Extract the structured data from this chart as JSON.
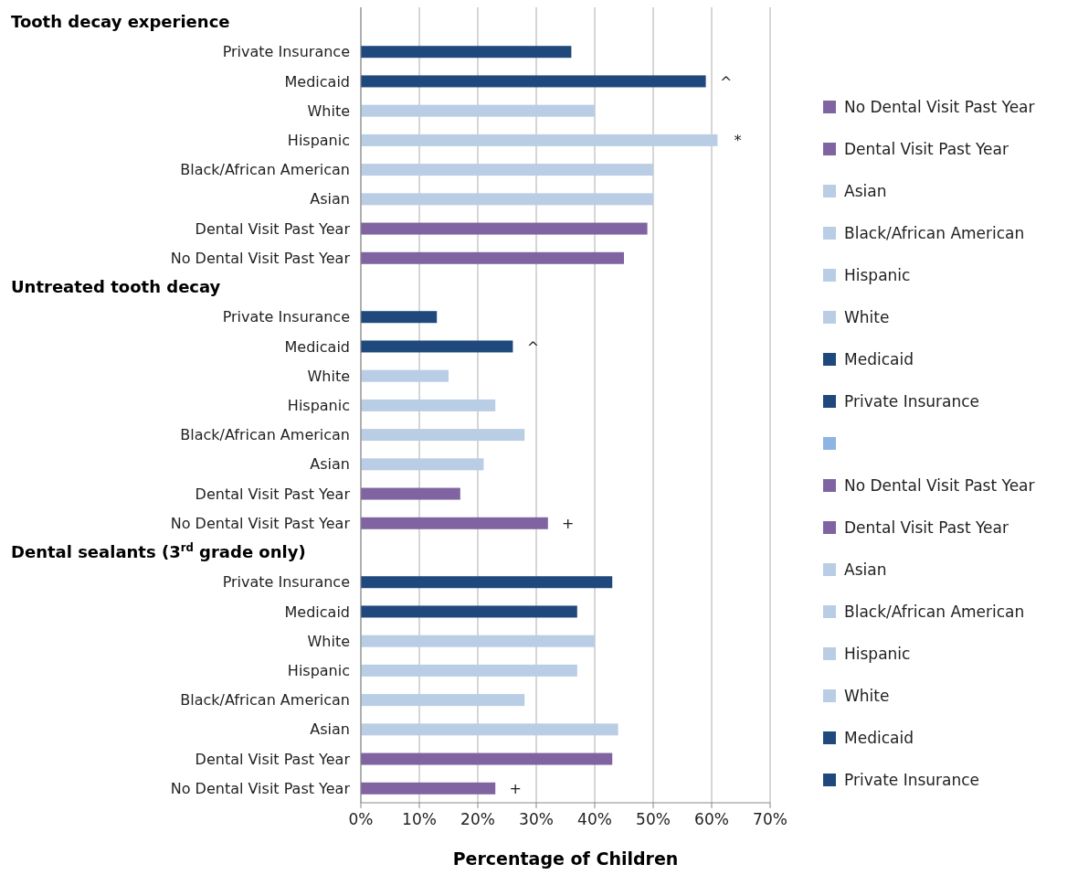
{
  "chart_data": {
    "type": "bar",
    "orientation": "horizontal",
    "stacked": true,
    "xlabel": "Percentage of Children",
    "annotations": [
      "Tooth decay experience",
      "Untreated tooth decay",
      "Dental sealants (3$^{rd}$ grade only)"
    ],
    "categories": [
      null,
      "Private Insurance",
      "Medicaid",
      "White",
      "Hispanic",
      "Black/African American",
      "Asian",
      "Dental Visit Past Year",
      "No Dental Visit Past Year",
      null,
      "Private Insurance",
      "Medicaid",
      "White",
      "Hispanic",
      "Black/African American",
      "Asian",
      "Dental Visit Past Year",
      "No Dental Visit Past Year",
      null,
      "Private Insurance",
      "Medicaid",
      "White",
      "Hispanic",
      "Black/African American",
      "Asian",
      "Dental Visit Past Year",
      "No Dental Visit Past Year"
    ],
    "xlim": [
      0,
      70
    ],
    "xticks": [
      {
        "value": 0,
        "label": "0%"
      },
      {
        "value": 10,
        "label": "10%"
      },
      {
        "value": 20,
        "label": "20%"
      },
      {
        "value": 30,
        "label": "30%"
      },
      {
        "value": 40,
        "label": "40%"
      },
      {
        "value": 50,
        "label": "50%"
      },
      {
        "value": 60,
        "label": "60%"
      },
      {
        "value": 70,
        "label": "70%"
      }
    ],
    "grid": "x",
    "legend": "right",
    "series": [
      {
        "name": "No Dental Visit Past Year",
        "color": "#8064a2",
        "values": [
          null,
          null,
          null,
          null,
          null,
          null,
          null,
          null,
          null,
          null,
          null,
          null,
          null,
          null,
          null,
          null,
          null,
          null,
          null,
          null,
          null,
          null,
          null,
          null,
          null,
          null,
          23
        ],
        "value_labels": [
          null,
          null,
          null,
          null,
          null,
          null,
          null,
          null,
          null,
          null,
          null,
          null,
          null,
          null,
          null,
          null,
          null,
          null,
          null,
          null,
          null,
          null,
          null,
          null,
          null,
          null,
          "+"
        ]
      },
      {
        "name": "Dental Visit Past Year",
        "color": "#8064a2",
        "values": [
          null,
          null,
          null,
          null,
          null,
          null,
          null,
          null,
          null,
          null,
          null,
          null,
          null,
          null,
          null,
          null,
          null,
          null,
          null,
          null,
          null,
          null,
          null,
          null,
          null,
          43,
          null
        ]
      },
      {
        "name": "Asian",
        "color": "#b9cde5",
        "values": [
          null,
          null,
          null,
          null,
          null,
          null,
          null,
          null,
          null,
          null,
          null,
          null,
          null,
          null,
          null,
          null,
          null,
          null,
          null,
          null,
          null,
          null,
          null,
          null,
          44,
          null,
          null
        ]
      },
      {
        "name": "Black/African American",
        "color": "#b9cde5",
        "values": [
          null,
          null,
          null,
          null,
          null,
          null,
          null,
          null,
          null,
          null,
          null,
          null,
          null,
          null,
          null,
          null,
          null,
          null,
          null,
          null,
          null,
          null,
          null,
          28,
          null,
          null,
          null
        ]
      },
      {
        "name": "Hispanic",
        "color": "#b9cde5",
        "values": [
          null,
          null,
          null,
          null,
          null,
          null,
          null,
          null,
          null,
          null,
          null,
          null,
          null,
          null,
          null,
          null,
          null,
          null,
          null,
          null,
          null,
          null,
          37,
          null,
          null,
          null,
          null
        ]
      },
      {
        "name": "White",
        "color": "#b9cde5",
        "values": [
          null,
          null,
          null,
          null,
          null,
          null,
          null,
          null,
          null,
          null,
          null,
          null,
          null,
          null,
          null,
          null,
          null,
          null,
          null,
          null,
          null,
          40,
          null,
          null,
          null,
          null,
          null
        ]
      },
      {
        "name": "Medicaid",
        "color": "#1f497d",
        "values": [
          null,
          null,
          null,
          null,
          null,
          null,
          null,
          null,
          null,
          null,
          null,
          null,
          null,
          null,
          null,
          null,
          null,
          null,
          null,
          null,
          37,
          null,
          null,
          null,
          null,
          null,
          null
        ]
      },
      {
        "name": "Private Insurance",
        "color": "#1f497d",
        "values": [
          null,
          null,
          null,
          null,
          null,
          null,
          null,
          null,
          null,
          null,
          null,
          null,
          null,
          null,
          null,
          null,
          null,
          null,
          null,
          43,
          null,
          null,
          null,
          null,
          null,
          null,
          null
        ]
      },
      {
        "color": "#8db4e2",
        "values": [
          null,
          null,
          null,
          null,
          null,
          null,
          null,
          null,
          null,
          null,
          null,
          null,
          null,
          null,
          null,
          null,
          null,
          null,
          null,
          null,
          null,
          null,
          null,
          null,
          null,
          null,
          null
        ]
      },
      {
        "name": "No Dental Visit Past Year",
        "color": "#8064a2",
        "values": [
          null,
          null,
          null,
          null,
          null,
          null,
          null,
          null,
          null,
          null,
          null,
          null,
          null,
          null,
          null,
          null,
          null,
          32,
          null,
          null,
          null,
          null,
          null,
          null,
          null,
          null,
          null
        ],
        "value_labels": [
          null,
          null,
          null,
          null,
          null,
          null,
          null,
          null,
          null,
          null,
          null,
          null,
          null,
          null,
          null,
          null,
          null,
          "+",
          null,
          null,
          null,
          null,
          null,
          null,
          null,
          null,
          null
        ]
      },
      {
        "name": "Dental Visit Past Year",
        "color": "#8064a2",
        "values": [
          null,
          null,
          null,
          null,
          null,
          null,
          null,
          null,
          null,
          null,
          null,
          null,
          null,
          null,
          null,
          null,
          17,
          null,
          null,
          null,
          null,
          null,
          null,
          null,
          null,
          null,
          null
        ]
      },
      {
        "name": "Asian",
        "color": "#b9cde5",
        "values": [
          null,
          null,
          null,
          null,
          null,
          null,
          null,
          null,
          null,
          null,
          null,
          null,
          null,
          null,
          null,
          21,
          null,
          null,
          null,
          null,
          null,
          null,
          null,
          null,
          null,
          null,
          null
        ]
      },
      {
        "name": "Black/African American",
        "color": "#b9cde5",
        "values": [
          null,
          null,
          null,
          null,
          null,
          null,
          null,
          null,
          null,
          null,
          null,
          null,
          null,
          null,
          28,
          null,
          null,
          null,
          null,
          null,
          null,
          null,
          null,
          null,
          null,
          null,
          null
        ]
      },
      {
        "name": "Hispanic",
        "color": "#b9cde5",
        "values": [
          null,
          null,
          null,
          null,
          null,
          null,
          null,
          null,
          null,
          null,
          null,
          null,
          null,
          23,
          null,
          null,
          null,
          null,
          null,
          null,
          null,
          null,
          null,
          null,
          null,
          null,
          null
        ]
      },
      {
        "name": "White",
        "color": "#b9cde5",
        "values": [
          null,
          null,
          null,
          null,
          null,
          null,
          null,
          null,
          null,
          null,
          null,
          null,
          15,
          null,
          null,
          null,
          null,
          null,
          null,
          null,
          null,
          null,
          null,
          null,
          null,
          null,
          null
        ]
      },
      {
        "name": "Medicaid",
        "color": "#1f497d",
        "values": [
          null,
          null,
          null,
          null,
          null,
          null,
          null,
          null,
          null,
          null,
          null,
          26,
          null,
          null,
          null,
          null,
          null,
          null,
          null,
          null,
          null,
          null,
          null,
          null,
          null,
          null,
          null
        ],
        "value_labels": [
          null,
          null,
          null,
          null,
          null,
          null,
          null,
          null,
          null,
          null,
          null,
          "^",
          null,
          null,
          null,
          null,
          null,
          null,
          null,
          null,
          null,
          null,
          null,
          null,
          null,
          null,
          null
        ]
      },
      {
        "name": "Private Insurance",
        "color": "#1f497d",
        "values": [
          null,
          null,
          null,
          null,
          null,
          null,
          null,
          null,
          null,
          null,
          13,
          null,
          null,
          null,
          null,
          null,
          null,
          null,
          null,
          null,
          null,
          null,
          null,
          null,
          null,
          null,
          null
        ]
      },
      {
        "color": "#1f497d",
        "values": [
          null,
          36,
          null,
          null,
          null,
          null,
          null,
          null,
          null,
          null,
          null,
          null,
          null,
          null,
          null,
          null,
          null,
          null,
          null,
          null,
          null,
          null,
          null,
          null,
          null,
          null,
          null
        ]
      },
      {
        "color": "#1f497d",
        "values": [
          null,
          null,
          59,
          null,
          null,
          null,
          null,
          null,
          null,
          null,
          null,
          null,
          null,
          null,
          null,
          null,
          null,
          null,
          null,
          null,
          null,
          null,
          null,
          null,
          null,
          null,
          null
        ],
        "value_labels": [
          null,
          null,
          "^",
          null,
          null,
          null,
          null,
          null,
          null,
          null,
          null,
          null,
          null,
          null,
          null,
          null,
          null,
          null,
          null,
          null,
          null,
          null,
          null,
          null,
          null,
          null,
          null
        ]
      },
      {
        "color": "#b9cde5",
        "values": [
          null,
          null,
          null,
          40,
          null,
          null,
          null,
          null,
          null,
          null,
          null,
          null,
          null,
          null,
          null,
          null,
          null,
          null,
          null,
          null,
          null,
          null,
          null,
          null,
          null,
          null,
          null
        ]
      },
      {
        "color": "#b9cde5",
        "values": [
          null,
          null,
          null,
          null,
          61,
          null,
          null,
          null,
          null,
          null,
          null,
          null,
          null,
          null,
          null,
          null,
          null,
          null,
          null,
          null,
          null,
          null,
          null,
          null,
          null,
          null,
          null
        ],
        "value_labels": [
          null,
          null,
          null,
          null,
          "*",
          null,
          null,
          null,
          null,
          null,
          null,
          null,
          null,
          null,
          null,
          null,
          null,
          null,
          null,
          null,
          null,
          null,
          null,
          null,
          null,
          null,
          null
        ]
      },
      {
        "color": "#b9cde5",
        "values": [
          null,
          null,
          null,
          null,
          null,
          50,
          null,
          null,
          null,
          null,
          null,
          null,
          null,
          null,
          null,
          null,
          null,
          null,
          null,
          null,
          null,
          null,
          null,
          null,
          null,
          null,
          null
        ]
      },
      {
        "color": "#b9cde5",
        "values": [
          null,
          null,
          null,
          null,
          null,
          null,
          50,
          null,
          null,
          null,
          null,
          null,
          null,
          null,
          null,
          null,
          null,
          null,
          null,
          null,
          null,
          null,
          null,
          null,
          null,
          null,
          null
        ]
      },
      {
        "color": "#8064a2",
        "values": [
          null,
          null,
          null,
          null,
          null,
          null,
          null,
          49,
          null,
          null,
          null,
          null,
          null,
          null,
          null,
          null,
          null,
          null,
          null,
          null,
          null,
          null,
          null,
          null,
          null,
          null,
          null
        ]
      },
      {
        "color": "#8064a2",
        "values": [
          null,
          null,
          null,
          null,
          null,
          null,
          null,
          null,
          45,
          null,
          null,
          null,
          null,
          null,
          null,
          null,
          null,
          null,
          null,
          null,
          null,
          null,
          null,
          null,
          null,
          null,
          null
        ]
      }
    ]
  }
}
